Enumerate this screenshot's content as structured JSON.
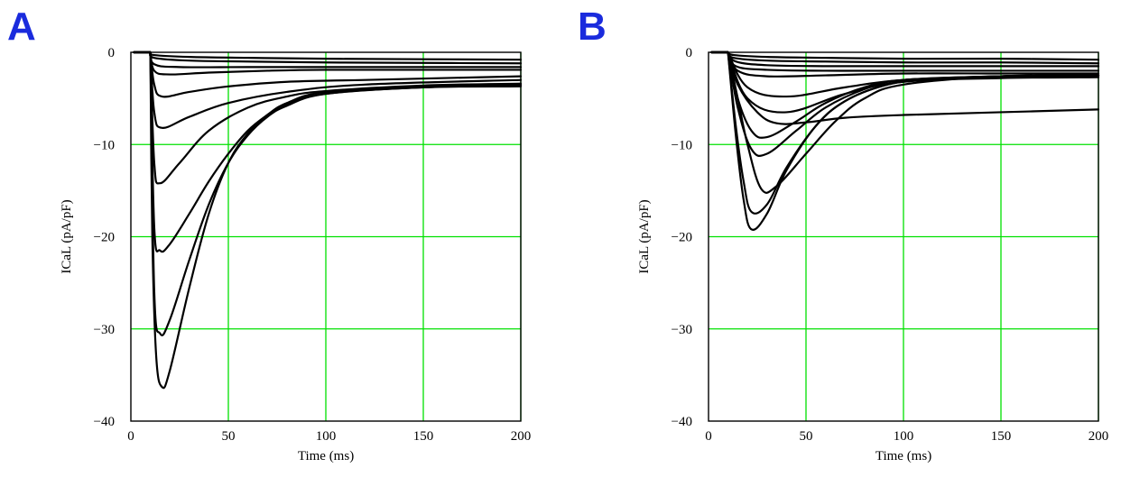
{
  "chart_data": [
    {
      "panel": "A",
      "type": "line",
      "xlabel": "Time (ms)",
      "ylabel": "ICaL (pA/pF)",
      "xlim": [
        0,
        200
      ],
      "ylim": [
        -40,
        0
      ],
      "xticks": [
        "0",
        "50",
        "100",
        "150",
        "200"
      ],
      "yticks": [
        "0",
        "−10",
        "−20",
        "−30",
        "−40"
      ],
      "grid": true,
      "pulse_start": 10,
      "series": [
        {
          "x": [
            10,
            12,
            30,
            60,
            100,
            150,
            200
          ],
          "y": [
            0,
            -0.3,
            -0.5,
            -0.6,
            -0.7,
            -0.75,
            -0.8
          ]
        },
        {
          "x": [
            10,
            12,
            30,
            60,
            100,
            150,
            200
          ],
          "y": [
            0,
            -0.6,
            -0.9,
            -1.0,
            -1.1,
            -1.15,
            -1.2
          ]
        },
        {
          "x": [
            10,
            12,
            25,
            60,
            100,
            150,
            200
          ],
          "y": [
            0,
            -1.3,
            -1.6,
            -1.6,
            -1.6,
            -1.6,
            -1.6
          ]
        },
        {
          "x": [
            10,
            12,
            20,
            40,
            70,
            100,
            150,
            200
          ],
          "y": [
            0,
            -2.0,
            -2.4,
            -2.2,
            -2.0,
            -1.9,
            -1.9,
            -1.9
          ]
        },
        {
          "x": [
            10,
            12,
            16,
            30,
            50,
            80,
            120,
            200
          ],
          "y": [
            0,
            -3.5,
            -4.8,
            -4.3,
            -3.7,
            -3.2,
            -3.0,
            -2.6
          ]
        },
        {
          "x": [
            10,
            12,
            16,
            30,
            50,
            80,
            120,
            200
          ],
          "y": [
            0,
            -6.5,
            -8.2,
            -7.0,
            -5.5,
            -4.3,
            -3.5,
            -3.0
          ]
        },
        {
          "x": [
            10,
            12,
            15,
            25,
            40,
            60,
            80,
            100,
            150,
            200
          ],
          "y": [
            0,
            -12.0,
            -14.2,
            -12.0,
            -8.5,
            -6.0,
            -4.8,
            -4.2,
            -3.6,
            -3.4
          ]
        },
        {
          "x": [
            10,
            12,
            15,
            20,
            30,
            40,
            50,
            60,
            70,
            80,
            100,
            150,
            200
          ],
          "y": [
            0,
            -19.0,
            -21.5,
            -20.8,
            -17.5,
            -14.0,
            -11.0,
            -8.5,
            -6.8,
            -5.5,
            -4.3,
            -3.7,
            -3.5
          ]
        },
        {
          "x": [
            10,
            12,
            15,
            20,
            30,
            40,
            50,
            60,
            70,
            80,
            100,
            150,
            200
          ],
          "y": [
            0,
            -26.0,
            -30.5,
            -29.0,
            -22.5,
            -16.5,
            -12.0,
            -9.0,
            -7.0,
            -5.8,
            -4.5,
            -3.8,
            -3.6
          ]
        },
        {
          "x": [
            10,
            11,
            13,
            16,
            20,
            30,
            40,
            50,
            60,
            70,
            80,
            100,
            150,
            200
          ],
          "y": [
            0,
            -20.0,
            -33.0,
            -36.3,
            -34.5,
            -25.5,
            -17.5,
            -12.0,
            -8.8,
            -6.8,
            -5.6,
            -4.5,
            -3.8,
            -3.7
          ]
        }
      ]
    },
    {
      "panel": "B",
      "type": "line",
      "xlabel": "Time (ms)",
      "ylabel": "ICaL (pA/pF)",
      "xlim": [
        0,
        200
      ],
      "ylim": [
        -40,
        0
      ],
      "xticks": [
        "0",
        "50",
        "100",
        "150",
        "200"
      ],
      "yticks": [
        "0",
        "−10",
        "−20",
        "−30",
        "−40"
      ],
      "grid": true,
      "pulse_start": 10,
      "series": [
        {
          "x": [
            10,
            13,
            30,
            60,
            100,
            150,
            200
          ],
          "y": [
            0,
            -0.3,
            -0.5,
            -0.6,
            -0.7,
            -0.7,
            -0.8
          ]
        },
        {
          "x": [
            10,
            13,
            30,
            60,
            100,
            150,
            200
          ],
          "y": [
            0,
            -0.6,
            -0.9,
            -1.0,
            -1.1,
            -1.1,
            -1.2
          ]
        },
        {
          "x": [
            10,
            14,
            30,
            60,
            100,
            150,
            200
          ],
          "y": [
            0,
            -1.0,
            -1.4,
            -1.5,
            -1.5,
            -1.5,
            -1.5
          ]
        },
        {
          "x": [
            10,
            14,
            30,
            60,
            100,
            150,
            200
          ],
          "y": [
            0,
            -1.5,
            -1.9,
            -2.0,
            -2.0,
            -2.0,
            -2.0
          ]
        },
        {
          "x": [
            10,
            15,
            30,
            60,
            100,
            150,
            200
          ],
          "y": [
            0,
            -2.0,
            -2.6,
            -2.5,
            -2.3,
            -2.3,
            -2.3
          ]
        },
        {
          "x": [
            10,
            20,
            40,
            70,
            100,
            150,
            200
          ],
          "y": [
            0,
            -3.8,
            -4.8,
            -3.8,
            -3.0,
            -2.7,
            -2.6
          ]
        },
        {
          "x": [
            10,
            20,
            40,
            70,
            100,
            150,
            200
          ],
          "y": [
            0,
            -5.0,
            -6.5,
            -4.5,
            -3.2,
            -2.8,
            -2.7
          ]
        },
        {
          "x": [
            10,
            15,
            25,
            35,
            50,
            70,
            100,
            150,
            200
          ],
          "y": [
            0,
            -3.5,
            -6.5,
            -7.7,
            -7.6,
            -7.1,
            -6.8,
            -6.5,
            -6.2
          ]
        },
        {
          "x": [
            10,
            15,
            22,
            30,
            45,
            60,
            80,
            100,
            150,
            200
          ],
          "y": [
            0,
            -5.0,
            -8.5,
            -9.2,
            -7.5,
            -5.5,
            -3.8,
            -3.0,
            -2.6,
            -2.5
          ]
        },
        {
          "x": [
            10,
            15,
            22,
            30,
            45,
            60,
            80,
            100,
            150,
            200
          ],
          "y": [
            0,
            -6.0,
            -10.5,
            -11.0,
            -8.5,
            -6.0,
            -4.0,
            -3.0,
            -2.6,
            -2.5
          ]
        },
        {
          "x": [
            10,
            15,
            20,
            27,
            35,
            50,
            65,
            80,
            100,
            150,
            200
          ],
          "y": [
            0,
            -5.0,
            -10.0,
            -14.8,
            -14.5,
            -11.0,
            -7.5,
            -5.0,
            -3.5,
            -2.6,
            -2.5
          ]
        },
        {
          "x": [
            10,
            14,
            18,
            22,
            30,
            40,
            55,
            70,
            90,
            110,
            150,
            200
          ],
          "y": [
            0,
            -8.0,
            -14.0,
            -17.3,
            -16.5,
            -12.5,
            -8.0,
            -5.3,
            -3.6,
            -3.0,
            -2.6,
            -2.5
          ]
        },
        {
          "x": [
            10,
            14,
            18,
            22,
            30,
            40,
            55,
            70,
            90,
            110,
            150,
            200
          ],
          "y": [
            0,
            -9.0,
            -16.0,
            -19.2,
            -17.5,
            -12.8,
            -8.0,
            -5.3,
            -3.6,
            -3.0,
            -2.6,
            -2.5
          ]
        }
      ]
    }
  ]
}
